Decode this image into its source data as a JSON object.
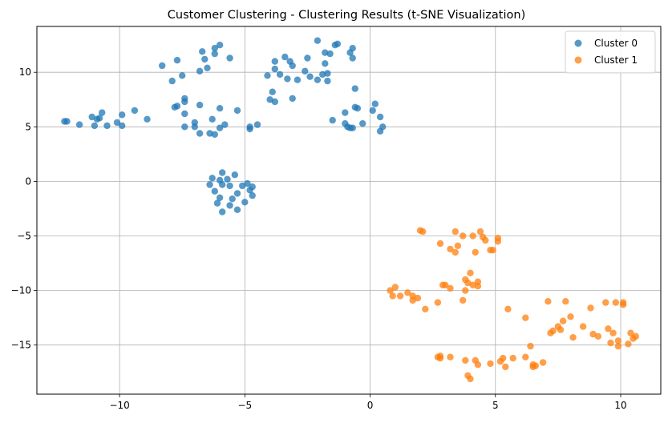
{
  "chart_data": {
    "type": "scatter",
    "title": "Customer Clustering - Clustering Results (t-SNE Visualization)",
    "xlabel": "",
    "ylabel": "",
    "xlim": [
      -13.3,
      11.6
    ],
    "ylim": [
      -19.5,
      14.2
    ],
    "xticks": [
      -10,
      -5,
      0,
      5,
      10
    ],
    "yticks": [
      -15,
      -10,
      -5,
      0,
      5,
      10
    ],
    "xtick_labels": [
      "−10",
      "−5",
      "0",
      "5",
      "10"
    ],
    "ytick_labels": [
      "−15",
      "−10",
      "−5",
      "0",
      "5",
      "10"
    ],
    "grid": true,
    "legend_position": "top-right",
    "series": [
      {
        "name": "Cluster 0",
        "color": "#1f77b4",
        "points": [
          [
            -12.2,
            5.5
          ],
          [
            -12.1,
            5.5
          ],
          [
            -11.6,
            5.2
          ],
          [
            -11.1,
            5.9
          ],
          [
            -11.0,
            5.1
          ],
          [
            -10.9,
            5.7
          ],
          [
            -10.8,
            5.8
          ],
          [
            -10.7,
            6.3
          ],
          [
            -10.5,
            5.1
          ],
          [
            -10.1,
            5.4
          ],
          [
            -9.9,
            6.1
          ],
          [
            -9.9,
            5.1
          ],
          [
            -9.4,
            6.5
          ],
          [
            -8.9,
            5.7
          ],
          [
            -8.3,
            10.6
          ],
          [
            -7.9,
            9.2
          ],
          [
            -7.7,
            11.1
          ],
          [
            -7.5,
            9.7
          ],
          [
            -7.8,
            6.8
          ],
          [
            -7.7,
            6.9
          ],
          [
            -7.4,
            7.6
          ],
          [
            -7.4,
            7.3
          ],
          [
            -7.4,
            6.2
          ],
          [
            -7.4,
            5.0
          ],
          [
            -7.0,
            5.4
          ],
          [
            -7.0,
            5.0
          ],
          [
            -6.8,
            7.0
          ],
          [
            -6.8,
            4.4
          ],
          [
            -6.7,
            11.9
          ],
          [
            -6.8,
            10.1
          ],
          [
            -6.6,
            11.2
          ],
          [
            -6.5,
            10.4
          ],
          [
            -6.4,
            4.4
          ],
          [
            -6.3,
            5.7
          ],
          [
            -6.2,
            4.3
          ],
          [
            -6.2,
            11.7
          ],
          [
            -6.2,
            12.2
          ],
          [
            -6.0,
            12.5
          ],
          [
            -6.0,
            6.7
          ],
          [
            -6.0,
            4.9
          ],
          [
            -5.8,
            5.2
          ],
          [
            -5.6,
            11.3
          ],
          [
            -5.3,
            6.5
          ],
          [
            -4.8,
            4.8
          ],
          [
            -4.8,
            5.0
          ],
          [
            -4.5,
            5.2
          ],
          [
            -4.1,
            9.7
          ],
          [
            -4.0,
            7.5
          ],
          [
            -3.9,
            8.2
          ],
          [
            -3.8,
            7.3
          ],
          [
            -3.8,
            10.3
          ],
          [
            -3.8,
            11.0
          ],
          [
            -3.6,
            9.8
          ],
          [
            -3.4,
            11.4
          ],
          [
            -3.2,
            11.0
          ],
          [
            -3.3,
            9.4
          ],
          [
            -3.1,
            7.6
          ],
          [
            -3.1,
            10.6
          ],
          [
            -2.9,
            9.3
          ],
          [
            -2.6,
            10.1
          ],
          [
            -2.5,
            11.3
          ],
          [
            -2.4,
            9.6
          ],
          [
            -2.1,
            9.3
          ],
          [
            -2.1,
            12.9
          ],
          [
            -1.9,
            9.8
          ],
          [
            -1.8,
            10.8
          ],
          [
            -1.8,
            11.8
          ],
          [
            -1.7,
            9.9
          ],
          [
            -1.7,
            9.2
          ],
          [
            -1.6,
            11.7
          ],
          [
            -1.5,
            5.6
          ],
          [
            -1.4,
            12.5
          ],
          [
            -1.3,
            12.6
          ],
          [
            -1.0,
            5.3
          ],
          [
            -1.0,
            6.3
          ],
          [
            -0.8,
            11.8
          ],
          [
            -0.7,
            12.2
          ],
          [
            -0.7,
            11.3
          ],
          [
            -0.6,
            8.5
          ],
          [
            -0.6,
            6.8
          ],
          [
            -0.5,
            6.7
          ],
          [
            -0.9,
            5.0
          ],
          [
            -0.8,
            4.9
          ],
          [
            -0.7,
            4.9
          ],
          [
            -0.3,
            5.3
          ],
          [
            0.2,
            7.1
          ],
          [
            0.1,
            6.5
          ],
          [
            0.4,
            5.9
          ],
          [
            0.5,
            5.0
          ],
          [
            0.4,
            4.6
          ],
          [
            -6.4,
            -0.3
          ],
          [
            -6.3,
            0.3
          ],
          [
            -6.2,
            -0.9
          ],
          [
            -6.0,
            0.1
          ],
          [
            -5.9,
            0.8
          ],
          [
            -5.9,
            -0.3
          ],
          [
            -5.7,
            0.2
          ],
          [
            -5.6,
            -0.4
          ],
          [
            -5.5,
            -1.6
          ],
          [
            -5.4,
            0.6
          ],
          [
            -5.3,
            -1.1
          ],
          [
            -5.1,
            -0.4
          ],
          [
            -4.9,
            -0.2
          ],
          [
            -4.8,
            -0.8
          ],
          [
            -4.7,
            -0.5
          ],
          [
            -4.7,
            -1.3
          ],
          [
            -6.0,
            -1.5
          ],
          [
            -6.1,
            -2.0
          ],
          [
            -5.9,
            -2.8
          ],
          [
            -5.6,
            -2.2
          ],
          [
            -5.3,
            -2.6
          ],
          [
            -5.0,
            -1.9
          ]
        ]
      },
      {
        "name": "Cluster 1",
        "color": "#ff7f0e",
        "points": [
          [
            2.0,
            -4.5
          ],
          [
            2.1,
            -4.6
          ],
          [
            2.8,
            -5.7
          ],
          [
            3.4,
            -4.6
          ],
          [
            3.5,
            -5.9
          ],
          [
            3.7,
            -5.0
          ],
          [
            4.1,
            -5.0
          ],
          [
            4.4,
            -4.6
          ],
          [
            4.5,
            -5.1
          ],
          [
            4.6,
            -5.4
          ],
          [
            4.8,
            -6.3
          ],
          [
            4.9,
            -6.3
          ],
          [
            5.1,
            -5.2
          ],
          [
            5.1,
            -5.5
          ],
          [
            3.2,
            -6.2
          ],
          [
            3.4,
            -6.5
          ],
          [
            4.2,
            -6.5
          ],
          [
            0.8,
            -10.0
          ],
          [
            0.9,
            -10.5
          ],
          [
            1.0,
            -9.7
          ],
          [
            1.2,
            -10.5
          ],
          [
            1.5,
            -10.2
          ],
          [
            1.7,
            -10.9
          ],
          [
            1.7,
            -10.5
          ],
          [
            1.9,
            -10.7
          ],
          [
            2.2,
            -11.7
          ],
          [
            2.7,
            -11.1
          ],
          [
            2.9,
            -9.5
          ],
          [
            3.0,
            -9.5
          ],
          [
            3.2,
            -9.8
          ],
          [
            3.7,
            -10.9
          ],
          [
            3.8,
            -10.0
          ],
          [
            3.8,
            -9.0
          ],
          [
            3.9,
            -9.3
          ],
          [
            4.0,
            -8.4
          ],
          [
            4.1,
            -9.5
          ],
          [
            4.3,
            -9.2
          ],
          [
            4.3,
            -9.6
          ],
          [
            5.5,
            -11.7
          ],
          [
            6.2,
            -12.5
          ],
          [
            7.1,
            -11.0
          ],
          [
            7.2,
            -13.9
          ],
          [
            7.3,
            -13.7
          ],
          [
            7.5,
            -13.3
          ],
          [
            7.6,
            -13.6
          ],
          [
            7.8,
            -11.0
          ],
          [
            7.7,
            -12.8
          ],
          [
            8.0,
            -12.4
          ],
          [
            8.1,
            -14.3
          ],
          [
            8.5,
            -13.3
          ],
          [
            8.8,
            -11.6
          ],
          [
            8.9,
            -14.0
          ],
          [
            9.1,
            -14.2
          ],
          [
            9.4,
            -11.1
          ],
          [
            9.5,
            -13.5
          ],
          [
            9.6,
            -14.8
          ],
          [
            9.7,
            -13.9
          ],
          [
            9.8,
            -11.1
          ],
          [
            9.9,
            -14.6
          ],
          [
            9.9,
            -15.1
          ],
          [
            10.1,
            -11.1
          ],
          [
            10.1,
            -11.3
          ],
          [
            10.3,
            -14.9
          ],
          [
            10.4,
            -13.9
          ],
          [
            10.5,
            -14.4
          ],
          [
            10.6,
            -14.2
          ],
          [
            2.7,
            -16.1
          ],
          [
            2.8,
            -16.2
          ],
          [
            2.8,
            -16.0
          ],
          [
            3.2,
            -16.1
          ],
          [
            3.8,
            -16.4
          ],
          [
            3.9,
            -17.8
          ],
          [
            4.0,
            -18.1
          ],
          [
            4.2,
            -16.4
          ],
          [
            4.3,
            -16.8
          ],
          [
            4.8,
            -16.7
          ],
          [
            5.2,
            -16.5
          ],
          [
            5.3,
            -16.2
          ],
          [
            5.4,
            -17.0
          ],
          [
            5.7,
            -16.2
          ],
          [
            6.2,
            -16.1
          ],
          [
            6.4,
            -15.1
          ],
          [
            6.5,
            -17.0
          ],
          [
            6.5,
            -16.8
          ],
          [
            6.9,
            -16.6
          ],
          [
            6.6,
            -16.9
          ]
        ]
      }
    ]
  }
}
